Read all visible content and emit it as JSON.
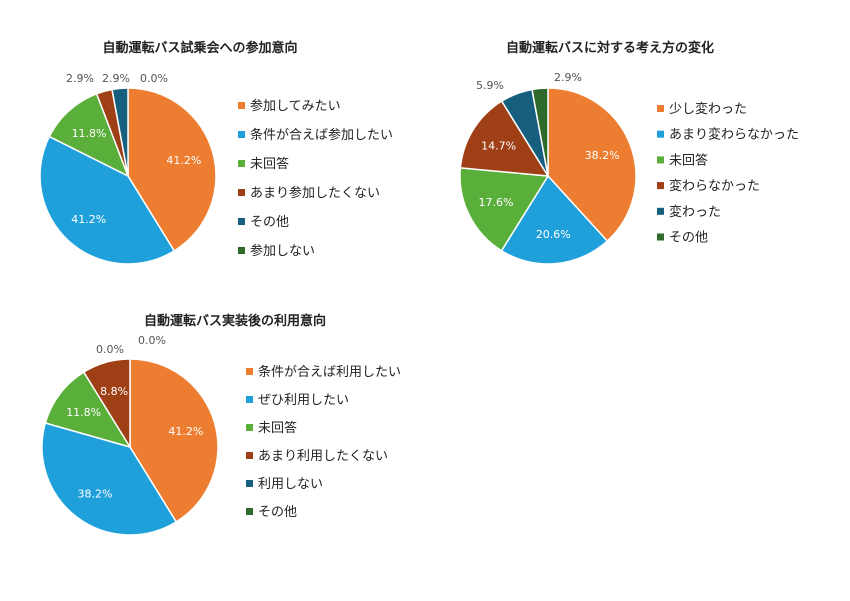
{
  "chart_data": [
    {
      "type": "pie",
      "title": "自動運転バス試乗会への参加意向",
      "legend_position": "right",
      "categories": [
        "参加してみたい",
        "条件が合えば参加したい",
        "未回答",
        "あまり参加したくない",
        "その他",
        "参加しない"
      ],
      "values": [
        41.2,
        41.2,
        11.8,
        2.9,
        2.9,
        0.0
      ],
      "labels": [
        "41.2%",
        "41.2%",
        "11.8%",
        "2.9%",
        "2.9%",
        "0.0%"
      ],
      "colors": [
        "#ED7D31",
        "#1FA0DB",
        "#5AAE3A",
        "#9E3F16",
        "#175F7E",
        "#2E6B2A"
      ]
    },
    {
      "type": "pie",
      "title": "自動運転バスに対する考え方の変化",
      "legend_position": "right",
      "categories": [
        "少し変わった",
        "あまり変わらなかった",
        "未回答",
        "変わらなかった",
        "変わった",
        "その他"
      ],
      "values": [
        38.2,
        20.6,
        17.6,
        14.7,
        5.9,
        2.9
      ],
      "labels": [
        "38.2%",
        "20.6%",
        "17.6%",
        "14.7%",
        "5.9%",
        "2.9%"
      ],
      "colors": [
        "#ED7D31",
        "#1FA0DB",
        "#5AAE3A",
        "#9E3F16",
        "#175F7E",
        "#2E6B2A"
      ]
    },
    {
      "type": "pie",
      "title": "自動運転バス実装後の利用意向",
      "legend_position": "right",
      "categories": [
        "条件が合えば利用したい",
        "ぜひ利用したい",
        "未回答",
        "あまり利用したくない",
        "利用しない",
        "その他"
      ],
      "values": [
        41.2,
        38.2,
        11.8,
        8.8,
        0.0,
        0.0
      ],
      "labels": [
        "41.2%",
        "38.2%",
        "11.8%",
        "8.8%",
        "0.0%",
        "0.0%"
      ],
      "colors": [
        "#ED7D31",
        "#1FA0DB",
        "#5AAE3A",
        "#9E3F16",
        "#175F7E",
        "#2E6B2A"
      ]
    }
  ]
}
